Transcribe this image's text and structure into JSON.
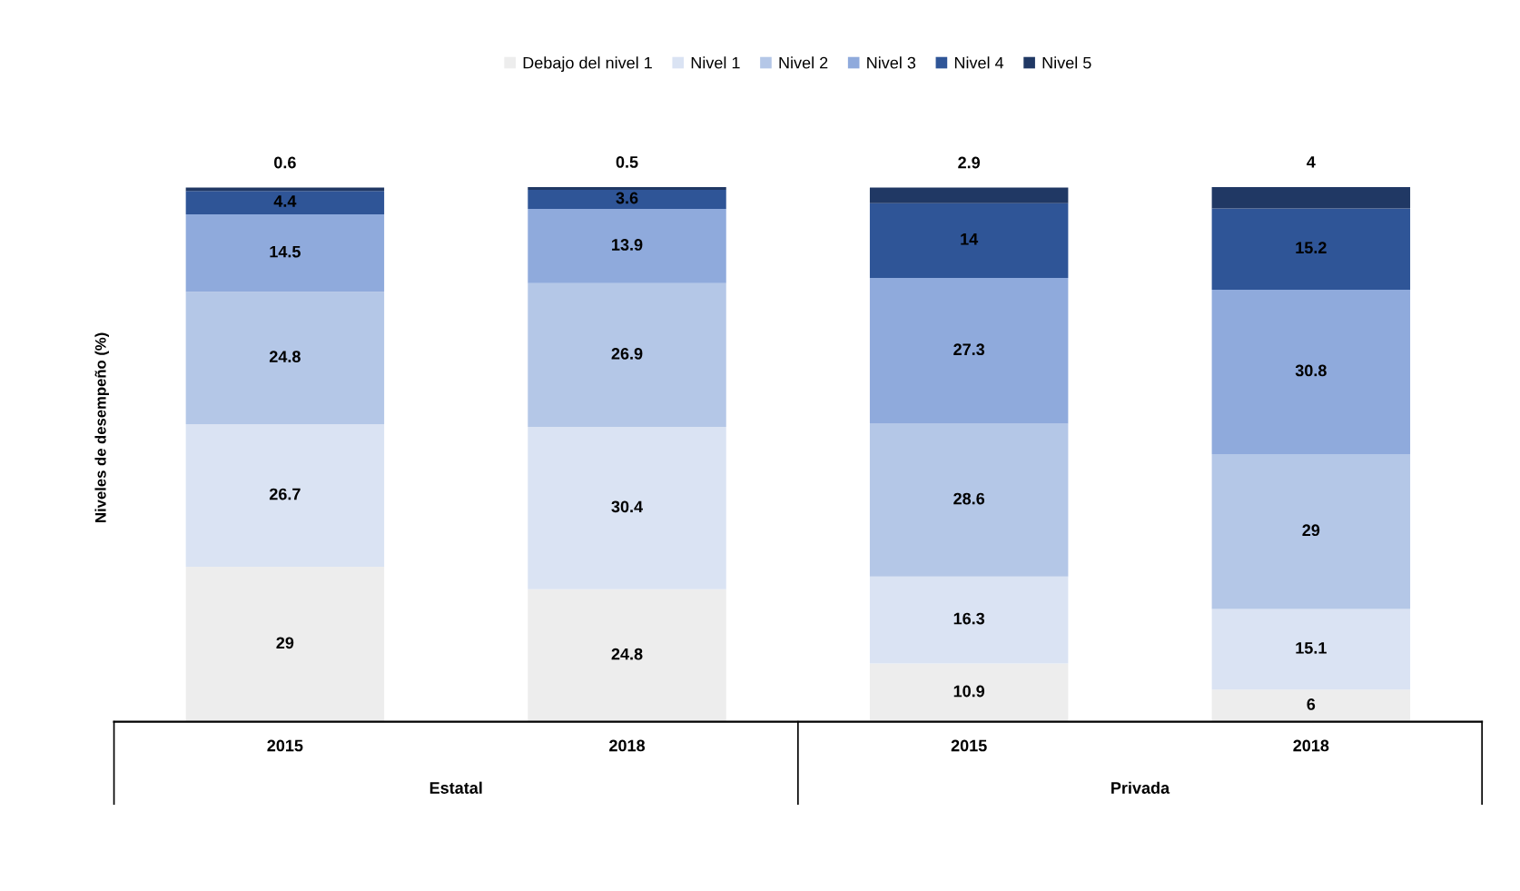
{
  "chart_data": {
    "type": "bar",
    "stacked": true,
    "ylabel": "Niveles de desempeño (%)",
    "categories": [
      "2015",
      "2018",
      "2015",
      "2018"
    ],
    "series": [
      {
        "name": "Debajo del nivel 1",
        "color": "#ededed",
        "values": [
          29,
          24.8,
          10.9,
          6
        ]
      },
      {
        "name": "Nivel 1",
        "color": "#dae3f3",
        "values": [
          26.7,
          30.4,
          16.3,
          15.1
        ]
      },
      {
        "name": "Nivel 2",
        "color": "#b4c7e7",
        "values": [
          24.8,
          26.9,
          28.6,
          29
        ]
      },
      {
        "name": "Nivel 3",
        "color": "#8faadc",
        "values": [
          14.5,
          13.9,
          27.3,
          30.8
        ]
      },
      {
        "name": "Nivel 4",
        "color": "#2f5597",
        "values": [
          4.4,
          3.6,
          14,
          15.2
        ]
      },
      {
        "name": "Nivel 5",
        "color": "#203864",
        "values": [
          0.6,
          0.5,
          2.9,
          4
        ]
      }
    ],
    "data_labels": true,
    "legend": "top",
    "grid": false,
    "annotations": [
      "Estatal",
      "Privada"
    ]
  }
}
